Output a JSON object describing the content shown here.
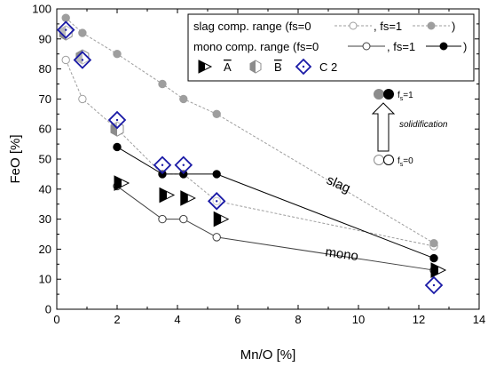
{
  "chart_data": {
    "type": "line",
    "xlabel": "Mn/O [%]",
    "ylabel": "FeO [%]",
    "xlim": [
      0,
      14
    ],
    "ylim": [
      0,
      100
    ],
    "xticks": [
      "0",
      "2",
      "4",
      "6",
      "8",
      "10",
      "12",
      "14"
    ],
    "yticks": [
      "0",
      "10",
      "20",
      "30",
      "40",
      "50",
      "60",
      "70",
      "80",
      "90",
      "100"
    ],
    "grid": false,
    "legend_position": "top-right",
    "legend": {
      "slag_label": "slag comp. range (fs=0",
      "slag_mid": ", fs=1",
      "slag_end": ")",
      "mono_label": "mono comp. range (fs=0",
      "mono_mid": ", fs=1",
      "mono_end": ")",
      "sample_a": "A",
      "sample_b": "B",
      "sample_c2": "C 2"
    },
    "series": [
      {
        "key": "slag_fs0",
        "x": [
          0.3,
          0.85,
          2.0,
          3.5,
          4.2,
          5.3,
          12.5
        ],
        "y": [
          83,
          70,
          60,
          45,
          45,
          36,
          21
        ],
        "color": "#9e9e9e",
        "style": "dashed",
        "marker": "open-circle"
      },
      {
        "key": "slag_fs1",
        "x": [
          0.3,
          0.85,
          2.0,
          3.5,
          4.2,
          5.3,
          12.5
        ],
        "y": [
          97,
          92,
          85,
          75,
          70,
          65,
          22
        ],
        "color": "#9e9e9e",
        "style": "dashed",
        "marker": "filled-circle"
      },
      {
        "key": "mono_fs0",
        "x": [
          2.0,
          3.5,
          4.2,
          5.3,
          12.5
        ],
        "y": [
          41,
          30,
          30,
          24,
          13
        ],
        "color": "#404040",
        "style": "solid",
        "marker": "open-circle"
      },
      {
        "key": "mono_fs1",
        "x": [
          2.0,
          3.5,
          4.2,
          5.3,
          12.5
        ],
        "y": [
          54,
          45,
          45,
          45,
          17
        ],
        "color": "#000000",
        "style": "solid",
        "marker": "filled-circle"
      }
    ],
    "samples": {
      "A": [
        [
          2.0,
          42
        ],
        [
          3.5,
          38
        ],
        [
          4.2,
          37
        ],
        [
          5.3,
          30
        ],
        [
          12.5,
          13
        ]
      ],
      "B": [
        [
          0.3,
          92
        ],
        [
          0.85,
          84
        ],
        [
          2.0,
          60
        ]
      ],
      "C2": [
        [
          0.3,
          93
        ],
        [
          0.85,
          83
        ],
        [
          2.0,
          63
        ],
        [
          3.5,
          48
        ],
        [
          4.2,
          48
        ],
        [
          5.3,
          36
        ],
        [
          12.5,
          8
        ]
      ]
    },
    "annotations": {
      "slag": "slag",
      "mono": "mono",
      "fs_top": "f",
      "fs_top_sub": "s",
      "fs_top_val": "=1",
      "fs_bottom": "f",
      "fs_bottom_sub": "s",
      "fs_bottom_val": "=0",
      "solidification": "solidification"
    }
  }
}
